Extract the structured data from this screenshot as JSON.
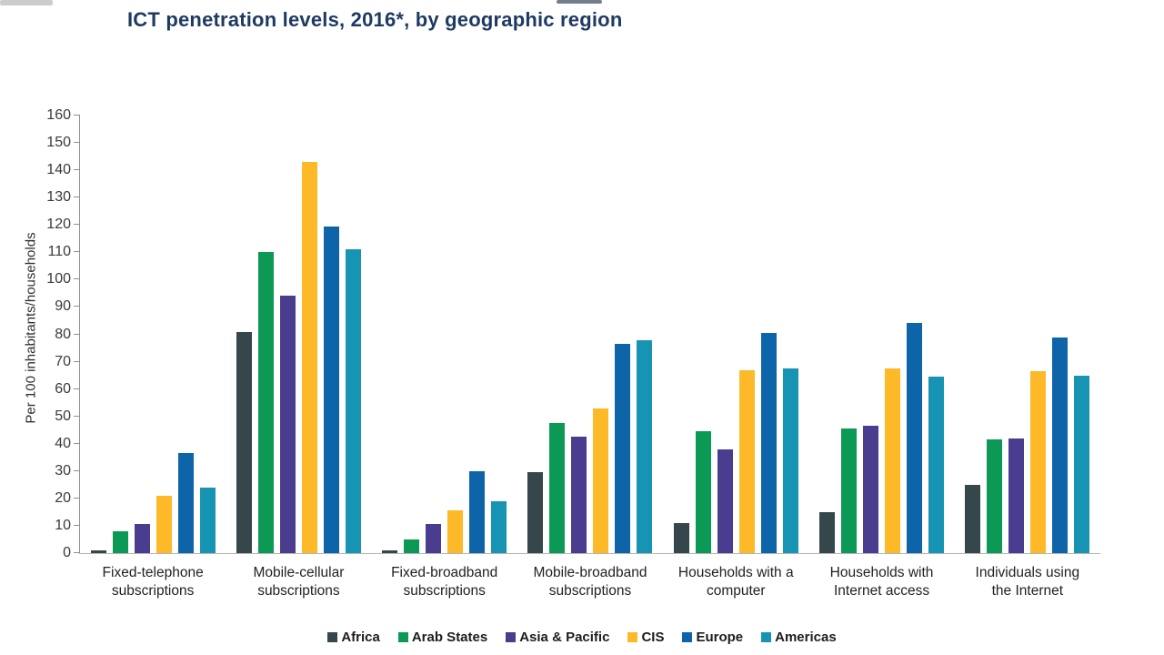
{
  "chart_data": {
    "type": "bar",
    "title": "ICT penetration levels, 2016*, by geographic region",
    "ylabel": "Per 100 inhabitants/households",
    "xlabel": "",
    "ylim": [
      0,
      160
    ],
    "ytick_step": 10,
    "grid": false,
    "legend_position": "bottom",
    "title_color": "#1e3a63",
    "categories": [
      "Fixed-telephone subscriptions",
      "Mobile-cellular subscriptions",
      "Fixed-broadband subscriptions",
      "Mobile-broadband subscriptions",
      "Households with a computer",
      "Households with Internet access",
      "Individuals using the Internet"
    ],
    "series": [
      {
        "name": "Africa",
        "color": "#35474b",
        "values": [
          1,
          81,
          1,
          29.5,
          11,
          15,
          25
        ]
      },
      {
        "name": "Arab States",
        "color": "#0c9955",
        "values": [
          8,
          110,
          5,
          47.5,
          44.5,
          45.5,
          41.5
        ]
      },
      {
        "name": "Asia & Pacific",
        "color": "#4a3c8e",
        "values": [
          10.5,
          94,
          10.5,
          42.5,
          38,
          46.5,
          42
        ]
      },
      {
        "name": "CIS",
        "color": "#fdb927",
        "values": [
          21,
          143,
          15.5,
          53,
          67,
          67.5,
          66.5
        ]
      },
      {
        "name": "Europe",
        "color": "#0d64a9",
        "values": [
          36.5,
          119.5,
          30,
          76.5,
          80.5,
          84,
          79
        ]
      },
      {
        "name": "Americas",
        "color": "#1794b4",
        "values": [
          24,
          111,
          19,
          78,
          67.5,
          64.5,
          65
        ]
      }
    ]
  }
}
